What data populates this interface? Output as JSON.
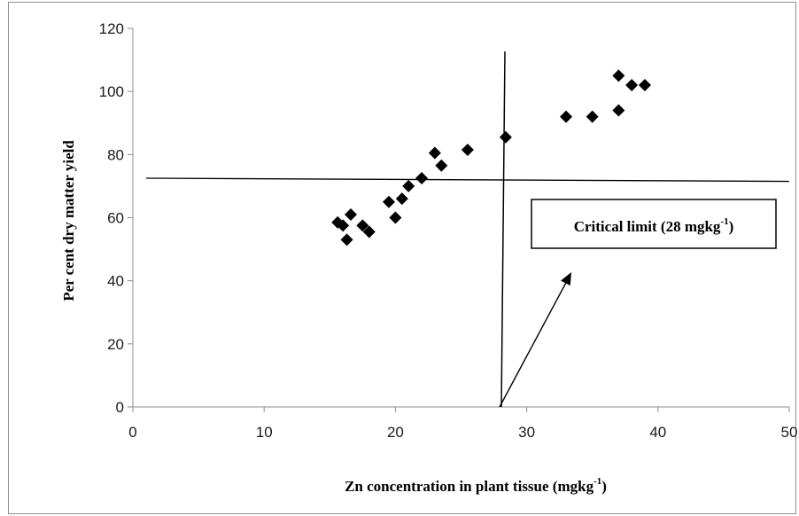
{
  "chart_data": {
    "type": "scatter",
    "xlim": [
      0,
      50
    ],
    "ylim": [
      0,
      120
    ],
    "x_ticks": [
      "0",
      "10",
      "20",
      "30",
      "40",
      "50"
    ],
    "y_ticks": [
      "0",
      "20",
      "40",
      "60",
      "80",
      "100",
      "120"
    ],
    "xlabel": {
      "main": "Zn concentration in plant tissue (mgkg",
      "sup": "-1",
      "tail": ")"
    },
    "ylabel": "Per cent dry matter yield",
    "grid": false,
    "marker": "diamond",
    "marker_color": "#000000",
    "points": [
      {
        "x": 15.6,
        "y": 58.5
      },
      {
        "x": 16.0,
        "y": 57.5
      },
      {
        "x": 16.3,
        "y": 53.0
      },
      {
        "x": 16.6,
        "y": 61.0
      },
      {
        "x": 17.5,
        "y": 57.5
      },
      {
        "x": 18.0,
        "y": 55.5
      },
      {
        "x": 19.5,
        "y": 65.0
      },
      {
        "x": 20.0,
        "y": 60.0
      },
      {
        "x": 20.5,
        "y": 66.0
      },
      {
        "x": 21.0,
        "y": 70.0
      },
      {
        "x": 22.0,
        "y": 72.5
      },
      {
        "x": 23.0,
        "y": 80.5
      },
      {
        "x": 23.5,
        "y": 76.5
      },
      {
        "x": 25.5,
        "y": 81.5
      },
      {
        "x": 28.4,
        "y": 85.5
      },
      {
        "x": 33.0,
        "y": 92.0
      },
      {
        "x": 35.0,
        "y": 92.0
      },
      {
        "x": 37.0,
        "y": 105.0
      },
      {
        "x": 37.0,
        "y": 94.0
      },
      {
        "x": 38.0,
        "y": 102.0
      },
      {
        "x": 39.0,
        "y": 102.0
      }
    ],
    "reference_lines": {
      "critical_x": 28,
      "horizontal_y_left": 72.5,
      "horizontal_y_right": 71.5
    },
    "annotation": {
      "main": "Critical limit (28 mgkg",
      "sup": "-1",
      "tail": ")"
    }
  }
}
